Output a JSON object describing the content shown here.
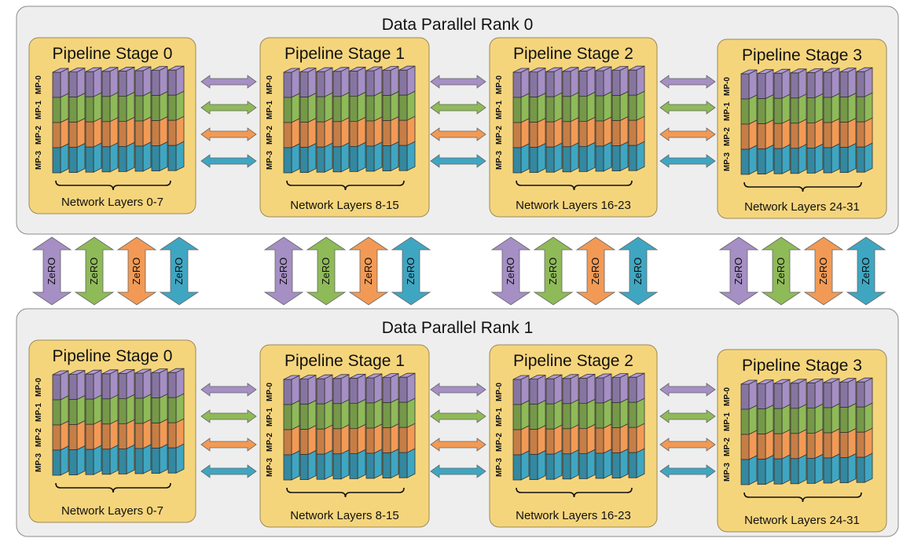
{
  "colors": {
    "mp0": "#a58fc4",
    "mp1": "#8fba58",
    "mp2": "#f29a55",
    "mp3": "#3fa6c2",
    "stage_fill": "#f5d57c",
    "panel_fill": "#eeeeee"
  },
  "mp_labels": [
    "MP-0",
    "MP-1",
    "MP-2",
    "MP-3"
  ],
  "zero_label": "ZeRO",
  "ranks": [
    {
      "title": "Data Parallel Rank 0",
      "stages": [
        {
          "title": "Pipeline Stage 0",
          "layers": "Network Layers 0-7"
        },
        {
          "title": "Pipeline Stage 1",
          "layers": "Network Layers 8-15"
        },
        {
          "title": "Pipeline Stage 2",
          "layers": "Network Layers 16-23"
        },
        {
          "title": "Pipeline Stage 3",
          "layers": "Network Layers 24-31"
        }
      ]
    },
    {
      "title": "Data Parallel Rank 1",
      "stages": [
        {
          "title": "Pipeline Stage 0",
          "layers": "Network Layers 0-7"
        },
        {
          "title": "Pipeline Stage 1",
          "layers": "Network Layers 8-15"
        },
        {
          "title": "Pipeline Stage 2",
          "layers": "Network Layers 16-23"
        },
        {
          "title": "Pipeline Stage 3",
          "layers": "Network Layers 24-31"
        }
      ]
    }
  ]
}
